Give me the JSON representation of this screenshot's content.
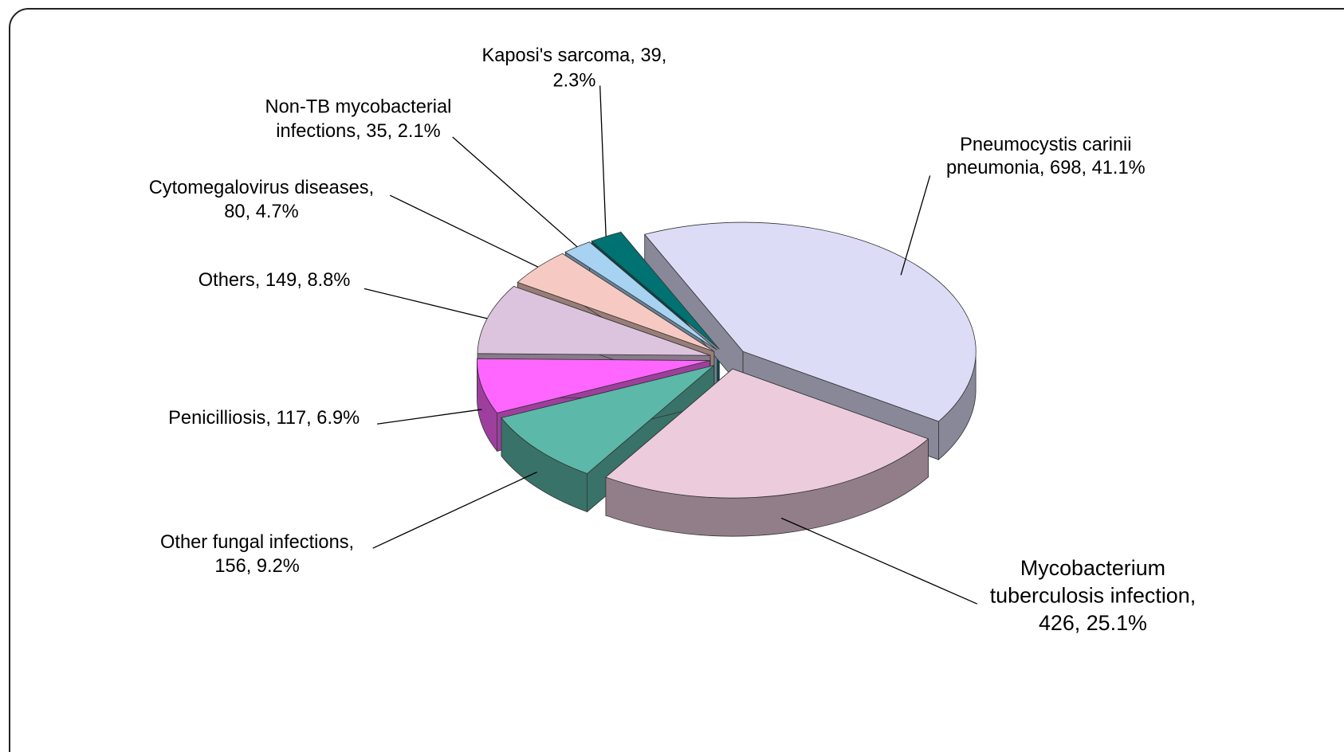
{
  "chart_data": {
    "type": "pie3d",
    "values": [
      698,
      426,
      156,
      117,
      149,
      80,
      35,
      39
    ],
    "value_labels": [
      [
        "Pneumocystis carinii",
        "pneumonia, 698, 41.1%"
      ],
      [
        "Mycobacterium",
        "tuberculosis infection,",
        "426, 25.1%"
      ],
      [
        "Other fungal infections,",
        "156, 9.2%"
      ],
      [
        "Penicilliosis, 117, 6.9%"
      ],
      [
        "Others, 149, 8.8%"
      ],
      [
        "Cytomegalovirus diseases,",
        "80, 4.7%"
      ],
      [
        "Non-TB mycobacterial",
        "infections, 35, 2.1%"
      ],
      [
        "Kaposi's sarcoma, 39,",
        "2.3%"
      ]
    ],
    "colors": [
      "#dcdcf6",
      "#ecccdc",
      "#5cb8a8",
      "#ff66ff",
      "#dcc4de",
      "#f6cac2",
      "#a8d2f2",
      "#007272"
    ]
  }
}
